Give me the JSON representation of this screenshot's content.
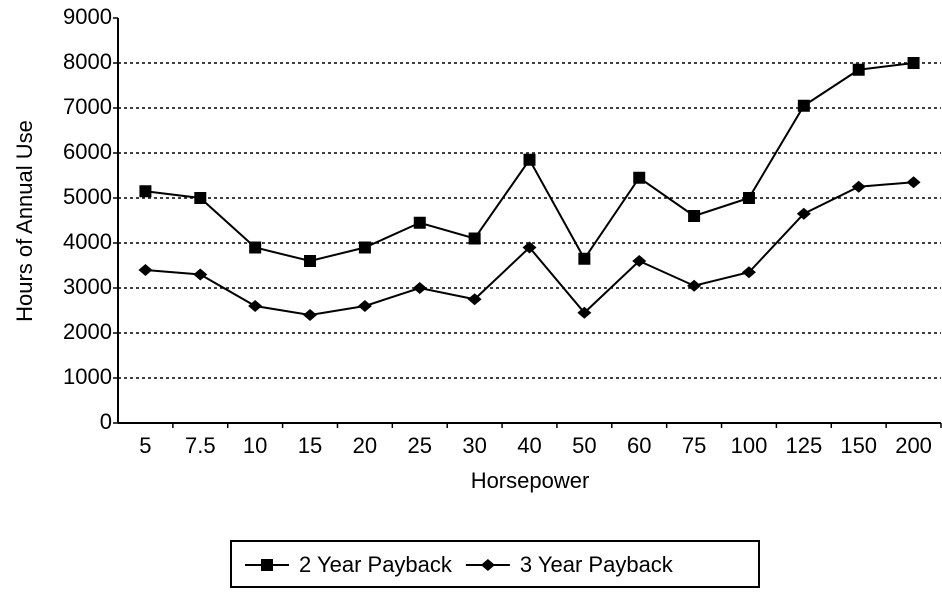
{
  "chart_data": {
    "type": "line",
    "x_label": "Horsepower",
    "y_label": "Hours of Annual Use",
    "categories": [
      "5",
      "7.5",
      "10",
      "15",
      "20",
      "25",
      "30",
      "40",
      "50",
      "60",
      "75",
      "100",
      "125",
      "150",
      "200"
    ],
    "series": [
      {
        "name": "2 Year Payback",
        "color": "#000000",
        "marker": "square",
        "values": [
          5150,
          5000,
          3900,
          3600,
          3900,
          4450,
          4100,
          5850,
          3650,
          5450,
          4600,
          5000,
          7050,
          7850,
          8000
        ]
      },
      {
        "name": "3 Year Payback",
        "color": "#000000",
        "marker": "plus",
        "values": [
          3400,
          3300,
          2600,
          2400,
          2600,
          3000,
          2750,
          3900,
          2450,
          3600,
          3050,
          3350,
          4650,
          5250,
          5350
        ]
      }
    ],
    "ylim": [
      0,
      9000
    ],
    "yticks": [
      0,
      1000,
      2000,
      3000,
      4000,
      5000,
      6000,
      7000,
      8000,
      9000
    ],
    "grid": true,
    "legend": "bottom"
  }
}
